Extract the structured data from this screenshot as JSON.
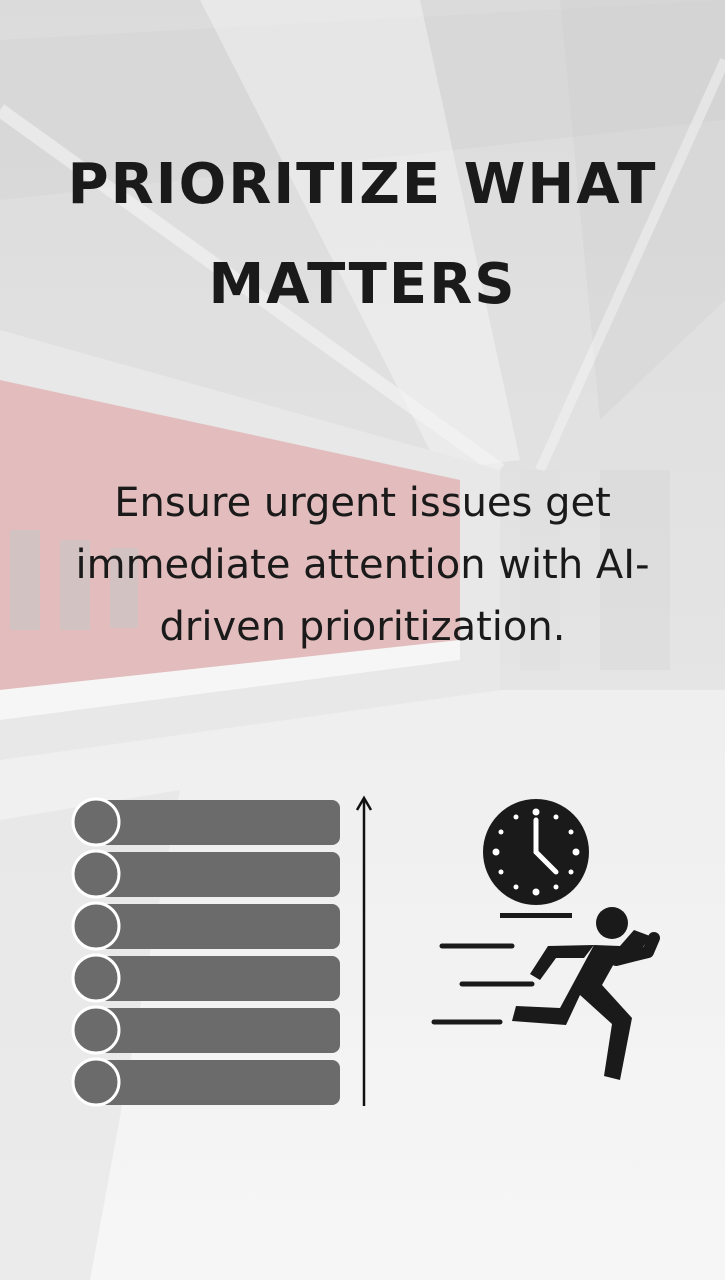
{
  "title": {
    "line1": "PRIORITIZE WHAT",
    "line2": "MATTERS"
  },
  "body": {
    "lines": [
      "Ensure urgent issues get",
      "immediate attention with AI-",
      "driven prioritization."
    ]
  },
  "illustration": {
    "list_icon": "priority-list-icon",
    "arrow_icon": "up-arrow-icon",
    "clock_icon": "clock-icon",
    "runner_icon": "running-person-icon",
    "bar_color": "#6b6b6b",
    "icon_color": "#1a1a1a"
  },
  "background": {
    "description_icon": "train-station-photo",
    "train_color": "#c94a4a"
  }
}
